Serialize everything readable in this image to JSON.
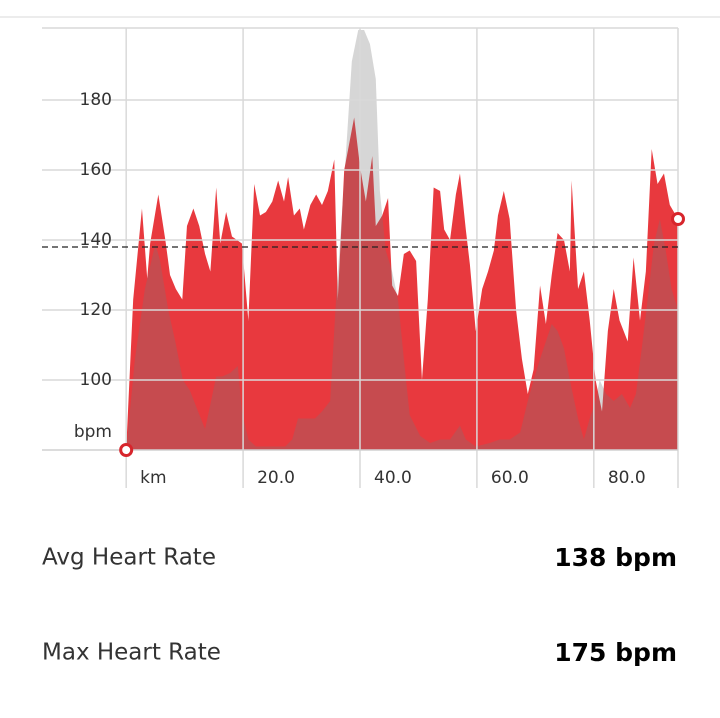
{
  "chart_data": {
    "type": "area",
    "ylabel": "bpm",
    "xlim": [
      -14.4,
      94.4
    ],
    "ylim": [
      80,
      200
    ],
    "xticks": [
      {
        "value": 0,
        "label": "km"
      },
      {
        "value": 20,
        "label": "20.0"
      },
      {
        "value": 40,
        "label": "40.0"
      },
      {
        "value": 60,
        "label": "60.0"
      },
      {
        "value": 80,
        "label": "80.0"
      }
    ],
    "yticks": [
      100,
      120,
      140,
      160,
      180
    ],
    "grid": true,
    "average": 138,
    "series": [
      {
        "color": "#e8393e",
        "x": [
          0,
          1.2,
          2.7,
          3.6,
          4.1,
          5.5,
          6.7,
          7.5,
          8.5,
          9.6,
          10.4,
          11.5,
          12.5,
          13.5,
          14.4,
          15.4,
          16.1,
          17.1,
          18.1,
          19.8,
          20.9,
          21.9,
          22.9,
          23.9,
          25.0,
          26.0,
          27.0,
          27.7,
          28.7,
          29.7,
          30.4,
          31.5,
          32.5,
          33.5,
          34.5,
          35.6,
          36.2,
          37.3,
          39.0,
          40.0,
          41.0,
          42.1,
          42.7,
          43.8,
          44.8,
          45.5,
          46.5,
          47.5,
          48.5,
          49.6,
          50.6,
          51.6,
          52.6,
          53.7,
          54.4,
          55.4,
          56.4,
          57.1,
          58.1,
          58.8,
          59.8,
          60.9,
          61.9,
          62.9,
          63.6,
          64.6,
          65.6,
          66.7,
          67.7,
          68.7,
          69.7,
          70.8,
          71.8,
          72.8,
          73.8,
          74.9,
          75.9,
          76.2,
          77.3,
          78.3,
          79.3,
          80.3,
          81.4,
          82.4,
          83.4,
          84.4,
          85.8,
          86.8,
          87.9,
          88.9,
          89.9,
          90.9,
          92.0,
          93.0,
          94.4
        ],
        "values": [
          80,
          123,
          149,
          129,
          139,
          153,
          140,
          130,
          126,
          123,
          144,
          149,
          144,
          136,
          131,
          155,
          139,
          148,
          141,
          139,
          117,
          156,
          147,
          148,
          151,
          157,
          151,
          158,
          147,
          149,
          143,
          150,
          153,
          150,
          154,
          163,
          123,
          160,
          175,
          161,
          151,
          164,
          144,
          147,
          152,
          127,
          124,
          136,
          137,
          134,
          100,
          123,
          155,
          154,
          143,
          140,
          153,
          159,
          143,
          133,
          114,
          126,
          131,
          137,
          147,
          154,
          146,
          120,
          106,
          96,
          103,
          127,
          116,
          130,
          142,
          140,
          131,
          157,
          126,
          131,
          117,
          100,
          91,
          114,
          126,
          117,
          111,
          135,
          117,
          131,
          166,
          156,
          159,
          150,
          146
        ]
      },
      {
        "color": "rgba(120,120,120,0.3)",
        "x": [
          0,
          1.5,
          3.2,
          5.0,
          5.8,
          7.2,
          8.4,
          9.7,
          10.9,
          12.3,
          13.5,
          14.4,
          15.4,
          16.4,
          17.8,
          19.1,
          19.8,
          20.9,
          22.2,
          24.6,
          27.2,
          28.4,
          29.4,
          30.8,
          32.3,
          33.5,
          34.9,
          35.9,
          37.3,
          38.6,
          39.7,
          40.7,
          41.7,
          42.7,
          43.4,
          44.4,
          45.5,
          46.5,
          47.5,
          48.5,
          50.3,
          52.0,
          53.7,
          55.4,
          57.1,
          58.1,
          59.8,
          62.2,
          63.9,
          65.6,
          67.4,
          68.7,
          69.7,
          70.8,
          71.8,
          72.8,
          73.8,
          74.9,
          75.9,
          77.3,
          78.3,
          79.3,
          80.3,
          81.0,
          82.1,
          83.4,
          84.8,
          86.2,
          87.2,
          88.2,
          89.2,
          90.3,
          91.3,
          92.3,
          93.3,
          94.4
        ],
        "values": [
          80,
          106,
          126,
          139,
          134,
          120,
          111,
          100,
          97,
          91,
          86,
          93,
          101,
          101,
          102,
          104,
          91,
          83,
          81,
          81,
          81,
          83,
          89,
          89,
          89,
          91,
          94,
          123,
          157,
          191,
          200,
          200,
          196,
          186,
          154,
          137,
          131,
          123,
          106,
          90,
          84,
          82,
          83,
          83,
          87,
          83,
          81,
          82,
          83,
          83,
          85,
          94,
          100,
          106,
          111,
          116,
          114,
          109,
          100,
          89,
          83,
          89,
          94,
          100,
          96,
          94,
          96,
          92,
          96,
          109,
          123,
          139,
          146,
          137,
          126,
          120
        ]
      }
    ]
  },
  "stats": [
    {
      "label": "Avg Heart Rate",
      "value": "138 bpm"
    },
    {
      "label": "Max Heart Rate",
      "value": "175 bpm"
    }
  ]
}
